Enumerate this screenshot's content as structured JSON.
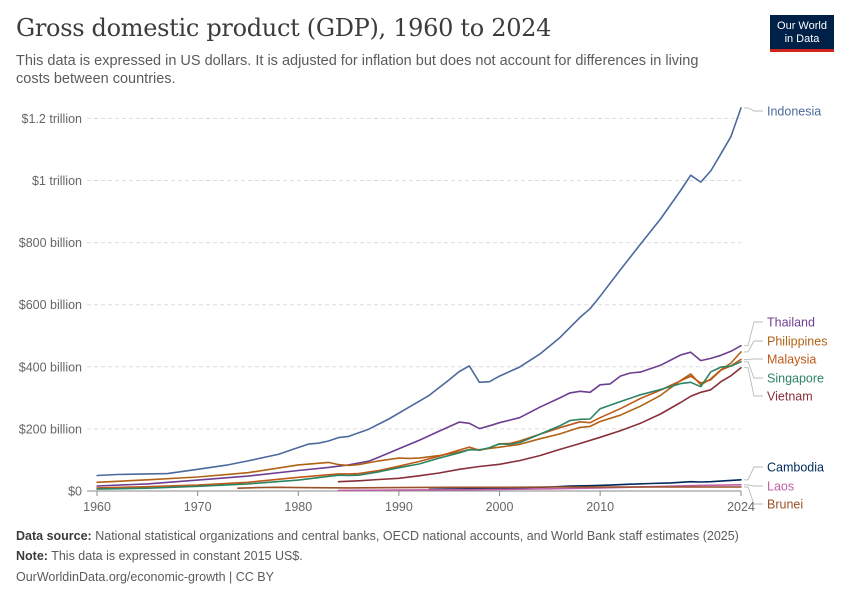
{
  "header": {
    "title": "Gross domestic product (GDP), 1960 to 2024",
    "subtitle": "This data is expressed in US dollars. It is adjusted for inflation but does not account for differences in living costs between countries.",
    "logo_line1": "Our World",
    "logo_line2": "in Data"
  },
  "footer": {
    "source_label": "Data source:",
    "source_text": "National statistical organizations and central banks, OECD national accounts, and World Bank staff estimates (2025)",
    "note_label": "Note:",
    "note_text": "This data is expressed in constant 2015 US$.",
    "link_text": "OurWorldinData.org/economic-growth | CC BY"
  },
  "chart_data": {
    "type": "line",
    "title": "Gross domestic product (GDP), 1960 to 2024",
    "units": "billion constant 2015 US$",
    "xlim": [
      1959,
      2024
    ],
    "ylim": [
      0,
      1240
    ],
    "x_ticks": [
      1960,
      1970,
      1980,
      1990,
      2000,
      2010,
      2024
    ],
    "y_ticks": [
      0,
      200,
      400,
      600,
      800,
      1000,
      1200
    ],
    "y_tick_labels": [
      "$0",
      "$200 billion",
      "$400 billion",
      "$600 billion",
      "$800 billion",
      "$1 trillion",
      "$1.2 trillion"
    ],
    "grid": "horizontal dashed",
    "legend": "right, labels at line ends",
    "series": [
      {
        "name": "Indonesia",
        "color": "#4c6a9c",
        "points": [
          [
            1960,
            50
          ],
          [
            1962,
            53
          ],
          [
            1965,
            55
          ],
          [
            1967,
            56
          ],
          [
            1970,
            70
          ],
          [
            1973,
            84
          ],
          [
            1975,
            97
          ],
          [
            1978,
            118
          ],
          [
            1980,
            140
          ],
          [
            1981,
            151
          ],
          [
            1982,
            154
          ],
          [
            1983,
            161
          ],
          [
            1984,
            172
          ],
          [
            1985,
            176
          ],
          [
            1987,
            199
          ],
          [
            1989,
            232
          ],
          [
            1991,
            270
          ],
          [
            1993,
            308
          ],
          [
            1995,
            358
          ],
          [
            1996,
            385
          ],
          [
            1997,
            403
          ],
          [
            1998,
            350
          ],
          [
            1999,
            352
          ],
          [
            2000,
            370
          ],
          [
            2002,
            399
          ],
          [
            2004,
            441
          ],
          [
            2006,
            494
          ],
          [
            2008,
            559
          ],
          [
            2009,
            587
          ],
          [
            2010,
            627
          ],
          [
            2012,
            712
          ],
          [
            2014,
            795
          ],
          [
            2016,
            876
          ],
          [
            2018,
            968
          ],
          [
            2019,
            1017
          ],
          [
            2020,
            995
          ],
          [
            2021,
            1031
          ],
          [
            2022,
            1086
          ],
          [
            2023,
            1141
          ],
          [
            2024,
            1234
          ]
        ]
      },
      {
        "name": "Thailand",
        "color": "#6d3e91",
        "points": [
          [
            1960,
            16
          ],
          [
            1965,
            23
          ],
          [
            1970,
            35
          ],
          [
            1975,
            48
          ],
          [
            1980,
            66
          ],
          [
            1983,
            76
          ],
          [
            1985,
            84
          ],
          [
            1987,
            96
          ],
          [
            1988,
            109
          ],
          [
            1990,
            136
          ],
          [
            1992,
            163
          ],
          [
            1994,
            193
          ],
          [
            1996,
            222
          ],
          [
            1997,
            218
          ],
          [
            1998,
            201
          ],
          [
            1999,
            210
          ],
          [
            2000,
            220
          ],
          [
            2002,
            236
          ],
          [
            2004,
            270
          ],
          [
            2006,
            300
          ],
          [
            2007,
            316
          ],
          [
            2008,
            321
          ],
          [
            2009,
            318
          ],
          [
            2010,
            342
          ],
          [
            2011,
            345
          ],
          [
            2012,
            370
          ],
          [
            2013,
            380
          ],
          [
            2014,
            383
          ],
          [
            2016,
            405
          ],
          [
            2018,
            438
          ],
          [
            2019,
            447
          ],
          [
            2020,
            420
          ],
          [
            2021,
            427
          ],
          [
            2022,
            437
          ],
          [
            2023,
            450
          ],
          [
            2024,
            468
          ]
        ]
      },
      {
        "name": "Philippines",
        "color": "#b16214",
        "points": [
          [
            1960,
            28
          ],
          [
            1965,
            36
          ],
          [
            1970,
            45
          ],
          [
            1975,
            59
          ],
          [
            1980,
            84
          ],
          [
            1983,
            92
          ],
          [
            1984,
            85
          ],
          [
            1985,
            82
          ],
          [
            1986,
            85
          ],
          [
            1988,
            97
          ],
          [
            1990,
            106
          ],
          [
            1991,
            105
          ],
          [
            1992,
            106
          ],
          [
            1994,
            114
          ],
          [
            1996,
            126
          ],
          [
            1997,
            133
          ],
          [
            1998,
            133
          ],
          [
            2000,
            141
          ],
          [
            2002,
            150
          ],
          [
            2004,
            168
          ],
          [
            2006,
            184
          ],
          [
            2008,
            205
          ],
          [
            2009,
            208
          ],
          [
            2010,
            224
          ],
          [
            2012,
            244
          ],
          [
            2014,
            273
          ],
          [
            2016,
            308
          ],
          [
            2018,
            356
          ],
          [
            2019,
            377
          ],
          [
            2020,
            342
          ],
          [
            2021,
            361
          ],
          [
            2022,
            390
          ],
          [
            2023,
            412
          ],
          [
            2024,
            448
          ]
        ]
      },
      {
        "name": "Malaysia",
        "color": "#c05917",
        "points": [
          [
            1960,
            10
          ],
          [
            1965,
            14
          ],
          [
            1970,
            19
          ],
          [
            1975,
            28
          ],
          [
            1980,
            44
          ],
          [
            1984,
            55
          ],
          [
            1985,
            55
          ],
          [
            1986,
            56
          ],
          [
            1988,
            66
          ],
          [
            1990,
            80
          ],
          [
            1992,
            95
          ],
          [
            1994,
            112
          ],
          [
            1996,
            132
          ],
          [
            1997,
            141
          ],
          [
            1998,
            131
          ],
          [
            1999,
            139
          ],
          [
            2000,
            152
          ],
          [
            2001,
            153
          ],
          [
            2002,
            161
          ],
          [
            2004,
            183
          ],
          [
            2006,
            204
          ],
          [
            2008,
            223
          ],
          [
            2009,
            220
          ],
          [
            2010,
            236
          ],
          [
            2012,
            265
          ],
          [
            2014,
            298
          ],
          [
            2016,
            325
          ],
          [
            2018,
            355
          ],
          [
            2019,
            370
          ],
          [
            2020,
            348
          ],
          [
            2021,
            358
          ],
          [
            2022,
            389
          ],
          [
            2023,
            403
          ],
          [
            2024,
            424
          ]
        ]
      },
      {
        "name": "Singapore",
        "color": "#2c8465",
        "points": [
          [
            1960,
            6
          ],
          [
            1965,
            9
          ],
          [
            1970,
            15
          ],
          [
            1975,
            23
          ],
          [
            1980,
            35
          ],
          [
            1984,
            51
          ],
          [
            1985,
            50
          ],
          [
            1986,
            51
          ],
          [
            1988,
            62
          ],
          [
            1990,
            75
          ],
          [
            1992,
            87
          ],
          [
            1994,
            106
          ],
          [
            1996,
            123
          ],
          [
            1997,
            133
          ],
          [
            1998,
            132
          ],
          [
            1999,
            139
          ],
          [
            2000,
            152
          ],
          [
            2001,
            150
          ],
          [
            2002,
            156
          ],
          [
            2004,
            183
          ],
          [
            2006,
            210
          ],
          [
            2007,
            227
          ],
          [
            2008,
            231
          ],
          [
            2009,
            232
          ],
          [
            2010,
            265
          ],
          [
            2012,
            288
          ],
          [
            2014,
            310
          ],
          [
            2016,
            327
          ],
          [
            2018,
            346
          ],
          [
            2019,
            350
          ],
          [
            2020,
            336
          ],
          [
            2021,
            384
          ],
          [
            2022,
            399
          ],
          [
            2023,
            402
          ],
          [
            2024,
            416
          ]
        ]
      },
      {
        "name": "Vietnam",
        "color": "#883039",
        "points": [
          [
            1984,
            30
          ],
          [
            1986,
            33
          ],
          [
            1988,
            37
          ],
          [
            1990,
            41
          ],
          [
            1992,
            49
          ],
          [
            1994,
            58
          ],
          [
            1996,
            70
          ],
          [
            1998,
            79
          ],
          [
            2000,
            86
          ],
          [
            2002,
            98
          ],
          [
            2004,
            114
          ],
          [
            2006,
            134
          ],
          [
            2008,
            153
          ],
          [
            2010,
            173
          ],
          [
            2012,
            194
          ],
          [
            2014,
            218
          ],
          [
            2016,
            248
          ],
          [
            2018,
            285
          ],
          [
            2019,
            305
          ],
          [
            2020,
            318
          ],
          [
            2021,
            326
          ],
          [
            2022,
            352
          ],
          [
            2023,
            371
          ],
          [
            2024,
            397
          ]
        ]
      },
      {
        "name": "Cambodia",
        "color": "#00295b",
        "points": [
          [
            1993,
            5
          ],
          [
            1995,
            6
          ],
          [
            1997,
            7
          ],
          [
            1999,
            8
          ],
          [
            2001,
            9
          ],
          [
            2003,
            11
          ],
          [
            2005,
            13
          ],
          [
            2007,
            16
          ],
          [
            2009,
            17
          ],
          [
            2011,
            19
          ],
          [
            2013,
            22
          ],
          [
            2015,
            24
          ],
          [
            2017,
            26
          ],
          [
            2019,
            30
          ],
          [
            2020,
            29
          ],
          [
            2021,
            30
          ],
          [
            2022,
            32
          ],
          [
            2023,
            34
          ],
          [
            2024,
            36
          ]
        ]
      },
      {
        "name": "Laos",
        "color": "#c15fa4",
        "points": [
          [
            1984,
            2
          ],
          [
            1990,
            3
          ],
          [
            1995,
            4
          ],
          [
            2000,
            5
          ],
          [
            2005,
            7
          ],
          [
            2010,
            10
          ],
          [
            2015,
            14
          ],
          [
            2019,
            17
          ],
          [
            2020,
            18
          ],
          [
            2024,
            20
          ]
        ]
      },
      {
        "name": "Brunei",
        "color": "#9a5129",
        "points": [
          [
            1974,
            9
          ],
          [
            1976,
            11
          ],
          [
            1978,
            12
          ],
          [
            1980,
            11
          ],
          [
            1985,
            10
          ],
          [
            1990,
            11
          ],
          [
            1995,
            12
          ],
          [
            2000,
            12
          ],
          [
            2005,
            13
          ],
          [
            2010,
            13
          ],
          [
            2015,
            13
          ],
          [
            2020,
            13
          ],
          [
            2024,
            13
          ]
        ]
      }
    ]
  }
}
